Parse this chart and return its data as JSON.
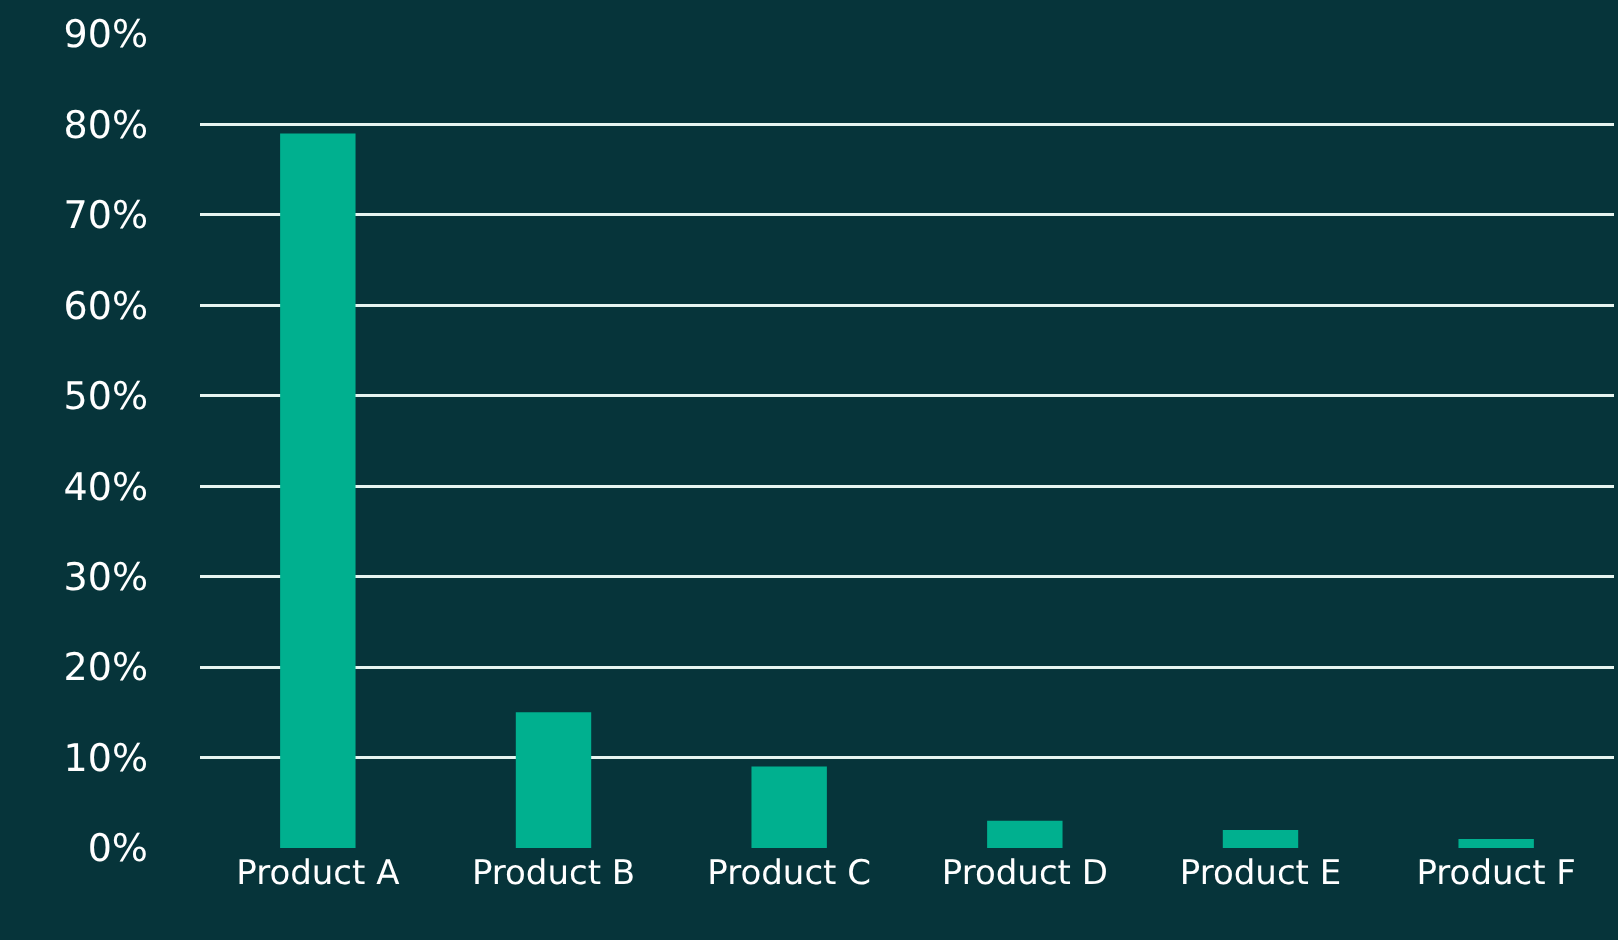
{
  "chart_data": {
    "type": "bar",
    "categories": [
      "Product A",
      "Product B",
      "Product C",
      "Product D",
      "Product E",
      "Product F"
    ],
    "values": [
      79,
      15,
      9,
      3,
      2,
      1
    ],
    "color": "#00b08f",
    "ylim": [
      0,
      90
    ],
    "yticks": [
      {
        "value": 0,
        "label": "0%"
      },
      {
        "value": 10,
        "label": "10%"
      },
      {
        "value": 20,
        "label": "20%"
      },
      {
        "value": 30,
        "label": "30%"
      },
      {
        "value": 40,
        "label": "40%"
      },
      {
        "value": 50,
        "label": "50%"
      },
      {
        "value": 60,
        "label": "60%"
      },
      {
        "value": 70,
        "label": "70%"
      },
      {
        "value": 80,
        "label": "80%"
      },
      {
        "value": 90,
        "label": "90%"
      }
    ],
    "grid": "y"
  }
}
